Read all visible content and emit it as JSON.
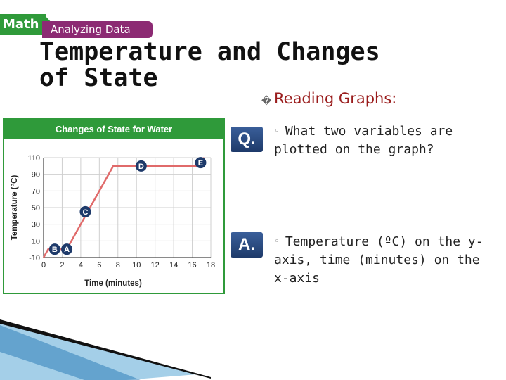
{
  "banner": {
    "math": "Math",
    "subtitle": "Analyzing Data"
  },
  "title": "Temperature and Changes of State",
  "reading": {
    "bullet": "�",
    "label": "Reading Graphs:"
  },
  "question": {
    "badge": "Q.",
    "text": "What two variables are plotted on the graph?"
  },
  "answer": {
    "badge": "A.",
    "text": "Temperature (ºC) on the y-axis, time (minutes) on the x-axis"
  },
  "colors": {
    "green": "#2f9a3a",
    "purple": "#8c2a73",
    "red_line": "#e06a6a",
    "point": "#1e3a6a",
    "badge": "#2a4a80"
  },
  "chart_data": {
    "type": "line",
    "title": "Changes of State for Water",
    "xlabel": "Time (minutes)",
    "ylabel": "Temperature (°C)",
    "xlim": [
      0,
      18
    ],
    "ylim": [
      -10,
      110
    ],
    "xticks": [
      0,
      2,
      4,
      6,
      8,
      10,
      12,
      14,
      16,
      18
    ],
    "yticks": [
      -10,
      10,
      30,
      50,
      70,
      90,
      110
    ],
    "grid": true,
    "series": [
      {
        "x": [
          0,
          0.5,
          2.5,
          7.5,
          16.5,
          17.3
        ],
        "y": [
          -10,
          0,
          0,
          100,
          100,
          110
        ]
      }
    ],
    "annotations": [
      {
        "label": "A",
        "x": 2.5,
        "y": 0
      },
      {
        "label": "B",
        "x": 1.2,
        "y": 0
      },
      {
        "label": "C",
        "x": 4.5,
        "y": 45
      },
      {
        "label": "D",
        "x": 10.5,
        "y": 100
      },
      {
        "label": "E",
        "x": 16.9,
        "y": 104
      }
    ]
  }
}
